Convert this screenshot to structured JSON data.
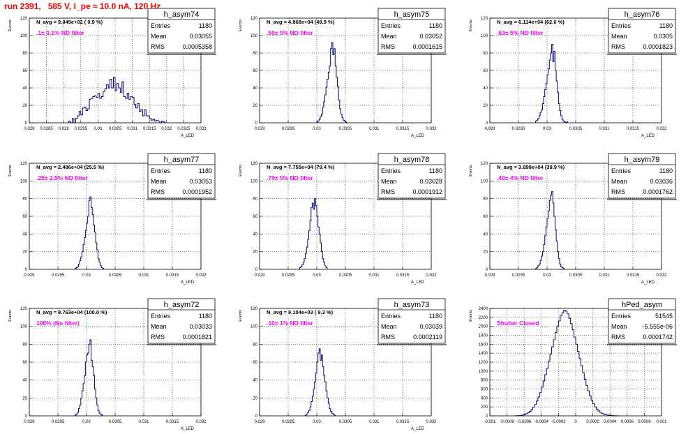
{
  "page_title": "run 2391,   585 V, I_pe ≈ 10.0 nA, 120 Hz",
  "colors": {
    "hist": "#000080",
    "filter_label": "#ff00ff",
    "title": "#ff0000",
    "grid": "#000000"
  },
  "chart_data": [
    {
      "type": "bar",
      "name": "h_asym74",
      "title": "N_avg = 9.045e+02 ( 0.9 %)",
      "annotation": ".1± 0.1% ND filter",
      "stats": [
        {
          "label": "Entries",
          "value": "1180"
        },
        {
          "label": "Mean",
          "value": "0.03055"
        },
        {
          "label": "RMS",
          "value": "0.0005358"
        }
      ],
      "xlabel": "A_LED",
      "ylabel": "Events",
      "xlim": [
        0.028,
        0.033
      ],
      "ylim": [
        0,
        120
      ],
      "xticks": [
        "0.028",
        "0.0285",
        "0.029",
        "0.0295",
        "0.03",
        "0.0305",
        "0.031",
        "0.0315",
        "0.032",
        "0.0325",
        "0.033"
      ],
      "yticks": [
        "0",
        "20",
        "40",
        "60",
        "80",
        "100",
        "120"
      ],
      "bins": {
        "x0": 0.02915,
        "width": 5e-05,
        "values": [
          2,
          0,
          5,
          0,
          5,
          8,
          13,
          9,
          17,
          18,
          14,
          16,
          27,
          28,
          30,
          31,
          29,
          34,
          28,
          30,
          36,
          39,
          44,
          40,
          50,
          40,
          52,
          37,
          45,
          40,
          35,
          47,
          30,
          28,
          34,
          27,
          30,
          29,
          21,
          17,
          22,
          13,
          15,
          8,
          15,
          8,
          8,
          5,
          3,
          4,
          2,
          3,
          2,
          0,
          2,
          1
        ]
      }
    },
    {
      "type": "bar",
      "name": "h_asym75",
      "title": "N_avg = 4.868e+04 (49.9 %)",
      "annotation": ".50± 5% ND filter",
      "stats": [
        {
          "label": "Entries",
          "value": "1180"
        },
        {
          "label": "Mean",
          "value": "0.03052"
        },
        {
          "label": "RMS",
          "value": "0.0001615"
        }
      ],
      "xlabel": "A_LED",
      "ylabel": "Events",
      "xlim": [
        0.029,
        0.032
      ],
      "ylim": [
        0,
        120
      ],
      "xticks": [
        "0.029",
        "0.0295",
        "0.03",
        "0.0305",
        "0.031",
        "0.0315",
        "0.032"
      ],
      "yticks": [
        "0",
        "20",
        "40",
        "60",
        "80",
        "100",
        "120"
      ],
      "bins": {
        "x0": 0.03,
        "width": 2e-05,
        "values": [
          1,
          2,
          4,
          7,
          10,
          18,
          24,
          32,
          41,
          50,
          58,
          65,
          85,
          92,
          78,
          85,
          65,
          52,
          42,
          26,
          16,
          10,
          6,
          3,
          2,
          1
        ]
      }
    },
    {
      "type": "bar",
      "name": "h_asym76",
      "title": "N_avg = 6.114e+04 (62.6 %)",
      "annotation": ".63± 5% ND filter",
      "stats": [
        {
          "label": "Entries",
          "value": "1180"
        },
        {
          "label": "Mean",
          "value": "0.0305"
        },
        {
          "label": "RMS",
          "value": "0.0001823"
        }
      ],
      "xlabel": "A_LED",
      "ylabel": "Events",
      "xlim": [
        0.029,
        0.032
      ],
      "ylim": [
        0,
        120
      ],
      "xticks": [
        "0.029",
        "0.0295",
        "0.03",
        "0.0305",
        "0.031",
        "0.0315",
        "0.032"
      ],
      "yticks": [
        "0",
        "20",
        "40",
        "60",
        "80",
        "100",
        "120"
      ],
      "bins": {
        "x0": 0.0298,
        "width": 2e-05,
        "values": [
          2,
          3,
          5,
          8,
          12,
          15,
          22,
          30,
          38,
          45,
          55,
          62,
          72,
          80,
          90,
          70,
          82,
          60,
          48,
          35,
          22,
          14,
          8,
          4,
          2,
          1,
          0,
          1
        ]
      }
    },
    {
      "type": "bar",
      "name": "h_asym77",
      "title": "N_avg = 2.486e+04 (25.5 %)",
      "annotation": ".25± 2.5% ND filter",
      "stats": [
        {
          "label": "Entries",
          "value": "1180"
        },
        {
          "label": "Mean",
          "value": "0.03053"
        },
        {
          "label": "RMS",
          "value": "0.0001952"
        }
      ],
      "xlabel": "A_LED",
      "ylabel": "Events",
      "xlim": [
        0.029,
        0.032
      ],
      "ylim": [
        0,
        120
      ],
      "xticks": [
        "0.029",
        "0.0295",
        "0.03",
        "0.0305",
        "0.031",
        "0.0315",
        "0.032"
      ],
      "yticks": [
        "0",
        "20",
        "40",
        "60",
        "80",
        "100",
        "120"
      ],
      "bins": {
        "x0": 0.0298,
        "width": 2e-05,
        "values": [
          1,
          2,
          3,
          6,
          10,
          14,
          20,
          28,
          36,
          44,
          52,
          60,
          78,
          82,
          70,
          62,
          50,
          42,
          30,
          22,
          12,
          8,
          4,
          2,
          1
        ]
      }
    },
    {
      "type": "bar",
      "name": "h_asym78",
      "title": "N_avg = 7.755e+04 (79.4 %)",
      "annotation": ".79± 5% ND filter",
      "stats": [
        {
          "label": "Entries",
          "value": "1180"
        },
        {
          "label": "Mean",
          "value": "0.03028"
        },
        {
          "label": "RMS",
          "value": "0.0001912"
        }
      ],
      "xlabel": "A_LED",
      "ylabel": "Events",
      "xlim": [
        0.029,
        0.032
      ],
      "ylim": [
        0,
        120
      ],
      "xticks": [
        "0.029",
        "0.0295",
        "0.03",
        "0.0305",
        "0.031",
        "0.0315",
        "0.032"
      ],
      "yticks": [
        "0",
        "20",
        "40",
        "60",
        "80",
        "100",
        "120"
      ],
      "bins": {
        "x0": 0.0297,
        "width": 2e-05,
        "values": [
          2,
          3,
          5,
          8,
          12,
          18,
          25,
          34,
          44,
          55,
          70,
          75,
          68,
          80,
          72,
          60,
          48,
          40,
          30,
          20,
          12,
          8,
          4,
          2
        ]
      }
    },
    {
      "type": "bar",
      "name": "h_asym79",
      "title": "N_avg = 3.899e+04 (39.9 %)",
      "annotation": ".40± 4% ND filter",
      "stats": [
        {
          "label": "Entries",
          "value": "1180"
        },
        {
          "label": "Mean",
          "value": "0.03036"
        },
        {
          "label": "RMS",
          "value": "0.0001762"
        }
      ],
      "xlabel": "A_LED",
      "ylabel": "Events",
      "xlim": [
        0.029,
        0.032
      ],
      "ylim": [
        0,
        120
      ],
      "xticks": [
        "0.029",
        "0.0295",
        "0.03",
        "0.0305",
        "0.031",
        "0.0315",
        "0.032"
      ],
      "yticks": [
        "0",
        "20",
        "40",
        "60",
        "80",
        "100",
        "120"
      ],
      "bins": {
        "x0": 0.0298,
        "width": 2e-05,
        "values": [
          1,
          2,
          4,
          6,
          10,
          15,
          20,
          28,
          38,
          48,
          58,
          66,
          78,
          84,
          88,
          75,
          60,
          45,
          32,
          20,
          12,
          6,
          3,
          2,
          1
        ]
      }
    },
    {
      "type": "bar",
      "name": "h_asym72",
      "title": "N_avg = 9.763e+04 (100.0 %)",
      "annotation": "100% (No filter)",
      "stats": [
        {
          "label": "Entries",
          "value": "1180"
        },
        {
          "label": "Mean",
          "value": "0.03033"
        },
        {
          "label": "RMS",
          "value": "0.0001821"
        }
      ],
      "xlabel": "A_LED",
      "ylabel": "Events",
      "xlim": [
        0.029,
        0.032
      ],
      "ylim": [
        0,
        120
      ],
      "xticks": [
        "0.029",
        "0.0295",
        "0.03",
        "0.0305",
        "0.031",
        "0.0315",
        "0.032"
      ],
      "yticks": [
        "0",
        "20",
        "40",
        "60",
        "80",
        "100",
        "120"
      ],
      "bins": {
        "x0": 0.0298,
        "width": 2e-05,
        "values": [
          1,
          2,
          4,
          8,
          12,
          20,
          28,
          36,
          45,
          60,
          68,
          70,
          80,
          85,
          62,
          55,
          45,
          30,
          20,
          12,
          6,
          3,
          2,
          1
        ]
      }
    },
    {
      "type": "bar",
      "name": "h_asym73",
      "title": "N_avg = 9.104e+03 ( 9.3 %)",
      "annotation": ".10± 1% ND filter",
      "stats": [
        {
          "label": "Entries",
          "value": "1180"
        },
        {
          "label": "Mean",
          "value": "0.03039"
        },
        {
          "label": "RMS",
          "value": "0.0002119"
        }
      ],
      "xlabel": "A_LED",
      "ylabel": "Events",
      "xlim": [
        0.029,
        0.032
      ],
      "ylim": [
        0,
        120
      ],
      "xticks": [
        "0.029",
        "0.0295",
        "0.03",
        "0.0305",
        "0.031",
        "0.0315",
        "0.032"
      ],
      "yticks": [
        "0",
        "20",
        "40",
        "60",
        "80",
        "100",
        "120"
      ],
      "bins": {
        "x0": 0.0298,
        "width": 2e-05,
        "values": [
          1,
          2,
          4,
          6,
          10,
          16,
          22,
          30,
          38,
          48,
          60,
          70,
          75,
          62,
          68,
          55,
          45,
          38,
          28,
          20,
          14,
          8,
          5,
          3,
          2,
          1
        ]
      }
    },
    {
      "type": "bar",
      "name": "hPed_asym",
      "title": "",
      "annotation": "Shutter Closed",
      "stats": [
        {
          "label": "Entries",
          "value": "51545"
        },
        {
          "label": "Mean",
          "value": "-5.555e-06"
        },
        {
          "label": "RMS",
          "value": "0.0001742"
        }
      ],
      "xlabel": "",
      "ylabel": "Events",
      "xlim": [
        -0.001,
        0.001
      ],
      "ylim": [
        0,
        2400
      ],
      "xticks": [
        "-0.001",
        "-0.0008",
        "-0.0006",
        "-0.0004",
        "-0.0002",
        "0",
        "0.0002",
        "0.0004",
        "0.0006",
        "0.0008",
        "0.001"
      ],
      "yticks": [
        "0",
        "200",
        "400",
        "600",
        "800",
        "1000",
        "1200",
        "1400",
        "1600",
        "1800",
        "2000",
        "2200",
        "2400"
      ],
      "bins": {
        "x0": -0.0007,
        "width": 2e-05,
        "values": [
          2,
          4,
          6,
          12,
          20,
          32,
          48,
          70,
          100,
          140,
          190,
          250,
          330,
          420,
          520,
          640,
          780,
          920,
          1060,
          1220,
          1380,
          1540,
          1700,
          1860,
          2000,
          2120,
          2240,
          2300,
          2360,
          2340,
          2280,
          2180,
          2060,
          1920,
          1760,
          1600,
          1440,
          1280,
          1120,
          960,
          820,
          680,
          560,
          450,
          350,
          270,
          200,
          150,
          110,
          80,
          56,
          40,
          28,
          20,
          14,
          9,
          6,
          4,
          2,
          1
        ]
      }
    }
  ]
}
